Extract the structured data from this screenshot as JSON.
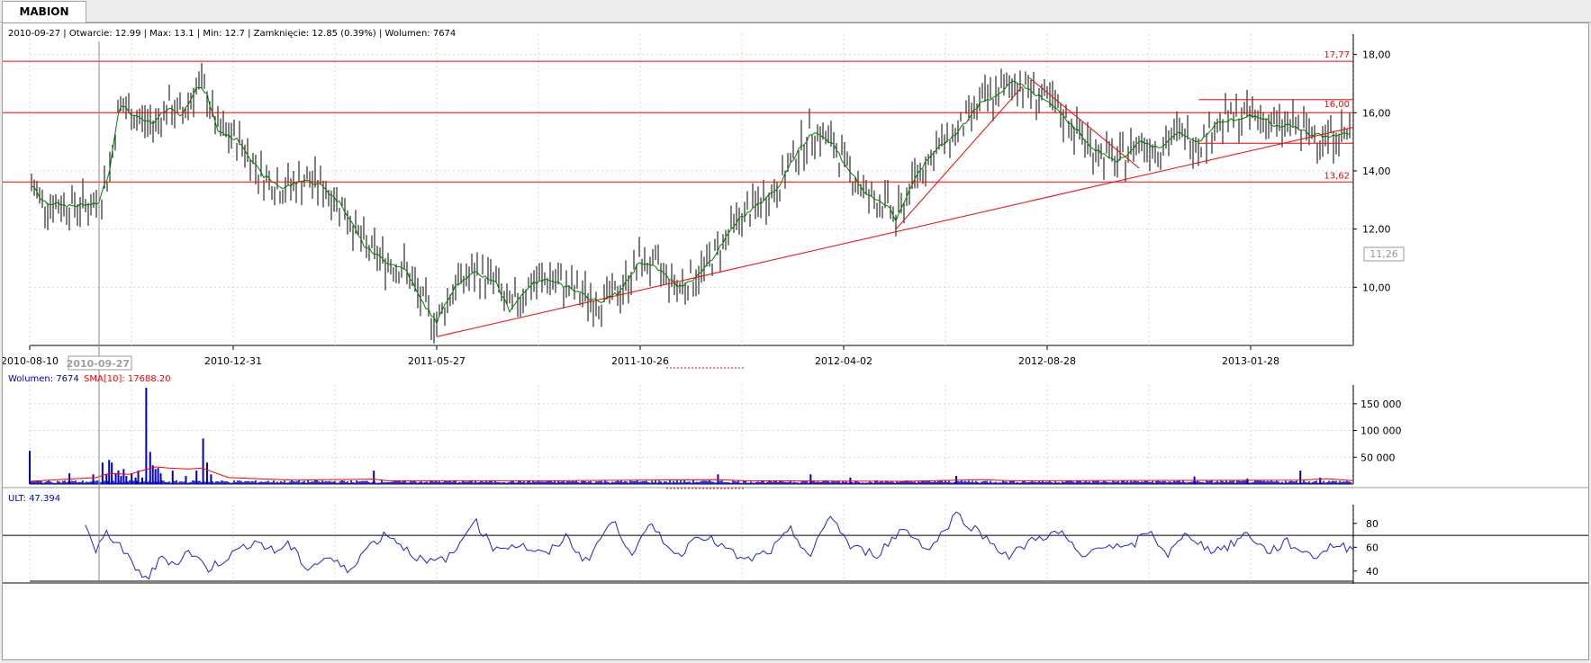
{
  "tab": {
    "label": "MABION"
  },
  "info": {
    "text": "2010-09-27 | Otwarcie: 12.99 | Max: 13.1 | Min: 12.7 | Zamknięcie: 12.85 (0.39%)  | Wolumen: 7674"
  },
  "volume_header": {
    "label": "Wolumen: 7674",
    "sma": "SMA[10]: 17688.20"
  },
  "ult_header": {
    "label": "ULT: 47.394"
  },
  "price_marker": {
    "value": "11,26"
  },
  "colors": {
    "price": "#000000",
    "ma": "#008000",
    "lines": "#ff0000",
    "volume": "#0000cc",
    "ult": "#2020e0"
  },
  "chart_data": [
    {
      "type": "line",
      "title": "",
      "x_tick_labels": [
        "2010-08-10",
        "2010-09-27",
        "2010-12-31",
        "2011-05-27",
        "2011-10-26",
        "2012-04-02",
        "2012-08-28",
        "2013-01-28"
      ],
      "y_ticks": [
        10,
        12,
        14,
        16,
        18
      ],
      "y_tick_labels": [
        "10,00",
        "12,00",
        "14,00",
        "16,00",
        "18,00"
      ],
      "ylim": [
        8.0,
        18.7
      ],
      "grid": true,
      "horizontal_levels": [
        {
          "value": 17.77,
          "label": "17,77"
        },
        {
          "value": 16.0,
          "label": ""
        },
        {
          "value": 13.62,
          "label": "13,62"
        }
      ],
      "resistance_segment": {
        "value": 16.45,
        "label": "16,00"
      },
      "support_segment": {
        "value": 14.95
      },
      "trendlines": [
        {
          "from": [
            "2011-05-27",
            8.3
          ],
          "to": [
            "2013-06-20",
            15.5
          ]
        },
        {
          "from": [
            "2012-05-10",
            12.0
          ],
          "to": [
            "2012-08-10",
            16.9
          ]
        },
        {
          "from": [
            "2012-08-15",
            17.2
          ],
          "to": [
            "2012-11-05",
            14.1
          ]
        }
      ],
      "approx_close": [
        [
          "2010-08-10",
          13.6
        ],
        [
          "2010-08-20",
          12.9
        ],
        [
          "2010-09-10",
          12.8
        ],
        [
          "2010-09-27",
          12.85
        ],
        [
          "2010-10-05",
          14.0
        ],
        [
          "2010-10-12",
          16.3
        ],
        [
          "2010-10-25",
          15.8
        ],
        [
          "2010-11-05",
          15.6
        ],
        [
          "2010-11-15",
          16.2
        ],
        [
          "2010-11-25",
          15.9
        ],
        [
          "2010-12-05",
          16.9
        ],
        [
          "2010-12-12",
          16.7
        ],
        [
          "2010-12-20",
          15.4
        ],
        [
          "2011-01-05",
          15.0
        ],
        [
          "2011-01-20",
          13.9
        ],
        [
          "2011-02-05",
          13.4
        ],
        [
          "2011-02-20",
          13.7
        ],
        [
          "2011-03-05",
          13.5
        ],
        [
          "2011-03-20",
          12.8
        ],
        [
          "2011-04-05",
          11.4
        ],
        [
          "2011-04-20",
          10.9
        ],
        [
          "2011-05-05",
          10.6
        ],
        [
          "2011-05-15",
          9.6
        ],
        [
          "2011-05-27",
          8.8
        ],
        [
          "2011-06-10",
          10.1
        ],
        [
          "2011-06-25",
          10.5
        ],
        [
          "2011-07-10",
          10.2
        ],
        [
          "2011-07-20",
          9.2
        ],
        [
          "2011-08-05",
          10.1
        ],
        [
          "2011-08-20",
          10.3
        ],
        [
          "2011-09-05",
          9.9
        ],
        [
          "2011-09-25",
          9.5
        ],
        [
          "2011-10-10",
          9.8
        ],
        [
          "2011-10-26",
          10.9
        ],
        [
          "2011-11-10",
          10.6
        ],
        [
          "2011-11-25",
          10.0
        ],
        [
          "2011-12-10",
          10.4
        ],
        [
          "2011-12-25",
          11.2
        ],
        [
          "2012-01-10",
          12.3
        ],
        [
          "2012-01-25",
          12.8
        ],
        [
          "2012-02-10",
          13.4
        ],
        [
          "2012-02-25",
          14.6
        ],
        [
          "2012-03-10",
          15.4
        ],
        [
          "2012-03-25",
          14.9
        ],
        [
          "2012-04-02",
          14.3
        ],
        [
          "2012-04-20",
          13.1
        ],
        [
          "2012-05-05",
          12.8
        ],
        [
          "2012-05-10",
          12.3
        ],
        [
          "2012-05-25",
          13.9
        ],
        [
          "2012-06-10",
          14.8
        ],
        [
          "2012-06-25",
          15.4
        ],
        [
          "2012-07-10",
          16.3
        ],
        [
          "2012-07-25",
          16.7
        ],
        [
          "2012-08-05",
          17.1
        ],
        [
          "2012-08-15",
          16.8
        ],
        [
          "2012-08-28",
          16.4
        ],
        [
          "2012-09-15",
          15.6
        ],
        [
          "2012-10-01",
          14.8
        ],
        [
          "2012-10-20",
          14.3
        ],
        [
          "2012-11-05",
          15.0
        ],
        [
          "2012-11-20",
          14.8
        ],
        [
          "2012-12-05",
          15.3
        ],
        [
          "2012-12-20",
          15.0
        ],
        [
          "2013-01-05",
          15.7
        ],
        [
          "2013-01-28",
          15.9
        ],
        [
          "2013-02-15",
          15.8
        ],
        [
          "2013-03-05",
          15.5
        ],
        [
          "2013-03-25",
          15.6
        ],
        [
          "2013-04-15",
          15.3
        ],
        [
          "2013-05-05",
          15.2
        ],
        [
          "2013-06-20",
          15.3
        ]
      ]
    },
    {
      "type": "bar",
      "title": "",
      "series_names": [
        "Wolumen",
        "SMA[10]"
      ],
      "y_ticks": [
        50000,
        100000,
        150000
      ],
      "y_tick_labels": [
        "50 000",
        "100 000",
        "150 000"
      ],
      "ylim": [
        0,
        185000
      ],
      "approx_values": [
        [
          0.0,
          62000
        ],
        [
          0.03,
          20000
        ],
        [
          0.048,
          18000
        ],
        [
          0.055,
          40000
        ],
        [
          0.058,
          18000
        ],
        [
          0.06,
          45000
        ],
        [
          0.062,
          40000
        ],
        [
          0.065,
          20000
        ],
        [
          0.067,
          25000
        ],
        [
          0.069,
          15000
        ],
        [
          0.071,
          28000
        ],
        [
          0.073,
          15000
        ],
        [
          0.077,
          20000
        ],
        [
          0.08,
          12000
        ],
        [
          0.082,
          25000
        ],
        [
          0.085,
          12000
        ],
        [
          0.088,
          180000
        ],
        [
          0.091,
          60000
        ],
        [
          0.093,
          35000
        ],
        [
          0.095,
          28000
        ],
        [
          0.097,
          30000
        ],
        [
          0.099,
          20000
        ],
        [
          0.108,
          25000
        ],
        [
          0.118,
          15000
        ],
        [
          0.126,
          25000
        ],
        [
          0.131,
          85000
        ],
        [
          0.134,
          40000
        ],
        [
          0.137,
          18000
        ],
        [
          0.26,
          25000
        ],
        [
          0.52,
          18000
        ],
        [
          0.59,
          18000
        ],
        [
          0.62,
          12000
        ],
        [
          0.7,
          15000
        ],
        [
          0.88,
          14000
        ],
        [
          0.92,
          10000
        ],
        [
          0.96,
          25000
        ],
        [
          0.975,
          12000
        ]
      ],
      "approx_sma": [
        [
          0.0,
          5000
        ],
        [
          0.05,
          12000
        ],
        [
          0.06,
          20000
        ],
        [
          0.075,
          18000
        ],
        [
          0.085,
          25000
        ],
        [
          0.095,
          32000
        ],
        [
          0.105,
          30000
        ],
        [
          0.12,
          28000
        ],
        [
          0.13,
          30000
        ],
        [
          0.15,
          12000
        ],
        [
          0.2,
          7000
        ],
        [
          0.26,
          9000
        ],
        [
          0.27,
          6000
        ],
        [
          0.4,
          6000
        ],
        [
          0.52,
          8000
        ],
        [
          0.54,
          6000
        ],
        [
          0.66,
          5000
        ],
        [
          0.72,
          8000
        ],
        [
          0.74,
          6000
        ],
        [
          0.96,
          7000
        ],
        [
          0.98,
          10000
        ],
        [
          1.0,
          6000
        ]
      ]
    },
    {
      "type": "line",
      "title": "",
      "series_names": [
        "ULT"
      ],
      "y_ticks": [
        40,
        60,
        80
      ],
      "y_tick_labels": [
        "40",
        "60",
        "80"
      ],
      "ylim": [
        30,
        92
      ],
      "reference_lines": [
        70,
        30
      ],
      "approx_values": [
        [
          0.042,
          80
        ],
        [
          0.05,
          55
        ],
        [
          0.058,
          72
        ],
        [
          0.068,
          62
        ],
        [
          0.08,
          40
        ],
        [
          0.09,
          35
        ],
        [
          0.1,
          52
        ],
        [
          0.11,
          46
        ],
        [
          0.12,
          57
        ],
        [
          0.135,
          42
        ],
        [
          0.15,
          52
        ],
        [
          0.17,
          66
        ],
        [
          0.185,
          56
        ],
        [
          0.195,
          63
        ],
        [
          0.21,
          42
        ],
        [
          0.225,
          52
        ],
        [
          0.24,
          40
        ],
        [
          0.255,
          60
        ],
        [
          0.27,
          72
        ],
        [
          0.285,
          58
        ],
        [
          0.3,
          46
        ],
        [
          0.32,
          53
        ],
        [
          0.335,
          84
        ],
        [
          0.35,
          60
        ],
        [
          0.37,
          62
        ],
        [
          0.39,
          53
        ],
        [
          0.405,
          69
        ],
        [
          0.42,
          48
        ],
        [
          0.44,
          82
        ],
        [
          0.455,
          56
        ],
        [
          0.47,
          78
        ],
        [
          0.49,
          52
        ],
        [
          0.505,
          72
        ],
        [
          0.52,
          63
        ],
        [
          0.54,
          48
        ],
        [
          0.56,
          57
        ],
        [
          0.575,
          74
        ],
        [
          0.59,
          52
        ],
        [
          0.605,
          88
        ],
        [
          0.62,
          60
        ],
        [
          0.64,
          54
        ],
        [
          0.66,
          76
        ],
        [
          0.68,
          58
        ],
        [
          0.7,
          88
        ],
        [
          0.72,
          70
        ],
        [
          0.74,
          52
        ],
        [
          0.76,
          68
        ],
        [
          0.78,
          72
        ],
        [
          0.795,
          50
        ],
        [
          0.81,
          63
        ],
        [
          0.83,
          58
        ],
        [
          0.845,
          74
        ],
        [
          0.86,
          54
        ],
        [
          0.875,
          72
        ],
        [
          0.89,
          58
        ],
        [
          0.905,
          60
        ],
        [
          0.92,
          72
        ],
        [
          0.935,
          56
        ],
        [
          0.95,
          64
        ],
        [
          0.97,
          52
        ],
        [
          0.985,
          62
        ],
        [
          1.0,
          58
        ]
      ]
    }
  ]
}
